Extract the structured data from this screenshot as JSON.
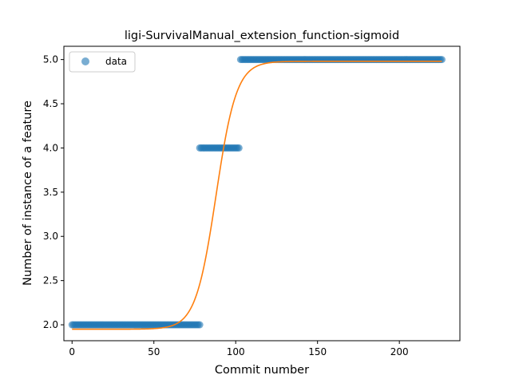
{
  "chart_data": {
    "type": "scatter",
    "title": "ligi-SurvivalManual_extension_function-sigmoid",
    "xlabel": "Commit number",
    "ylabel": "Number of instance of a feature",
    "xlim": [
      -5,
      237
    ],
    "ylim": [
      1.82,
      5.15
    ],
    "x_ticks": [
      0,
      50,
      100,
      150,
      200
    ],
    "x_tick_labels": [
      "0",
      "50",
      "100",
      "150",
      "200"
    ],
    "y_ticks": [
      2.0,
      2.5,
      3.0,
      3.5,
      4.0,
      4.5,
      5.0
    ],
    "y_tick_labels": [
      "2.0",
      "2.5",
      "3.0",
      "3.5",
      "4.0",
      "4.5",
      "5.0"
    ],
    "grid": false,
    "legend": {
      "position": "upper-left",
      "entries": [
        "data"
      ]
    },
    "colors": {
      "data": "#1f77b4",
      "fit": "#ff7f0e"
    },
    "series": [
      {
        "name": "data",
        "kind": "scatter",
        "segments": [
          {
            "x_from": 0,
            "x_to": 78,
            "y": 2.0
          },
          {
            "x_from": 78,
            "x_to": 102,
            "y": 4.0
          },
          {
            "x_from": 103,
            "x_to": 226,
            "y": 5.0
          }
        ]
      },
      {
        "kind": "line",
        "model": "sigmoid",
        "params": {
          "lower": 1.95,
          "upper": 4.98,
          "midpoint": 88,
          "slope": 0.16
        },
        "x_from": 0,
        "x_to": 226
      }
    ]
  }
}
